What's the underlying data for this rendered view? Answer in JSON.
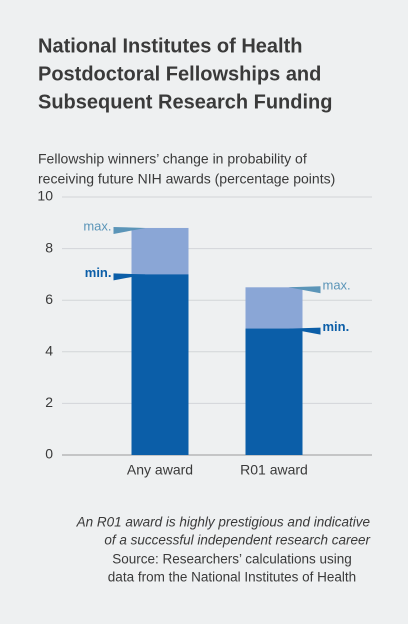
{
  "chart_data": {
    "type": "bar",
    "title": [
      "National Institutes of Health",
      "Postdoctoral Fellowships and",
      "Subsequent Research Funding"
    ],
    "subtitle": [
      "Fellowship winners’ change in probability of",
      "receiving future NIH awards (percentage points)"
    ],
    "categories": [
      "Any award",
      "R01 award"
    ],
    "series": [
      {
        "name": "max.",
        "color": "#8aa6d6",
        "label_color": "#5b95b8",
        "values": [
          8.8,
          6.5
        ]
      },
      {
        "name": "min.",
        "color": "#0b5ea8",
        "label_color": "#0b5ea8",
        "values": [
          7.0,
          4.9
        ]
      }
    ],
    "ylim": [
      0,
      10
    ],
    "yticks": [
      0,
      2,
      4,
      6,
      8,
      10
    ],
    "grid": true,
    "note": [
      "An R01 award is highly prestigious and indicative",
      "of a successful independent research career"
    ],
    "source": [
      "Source: Researchers’ calculations using",
      "data from the National Institutes of Health"
    ]
  }
}
